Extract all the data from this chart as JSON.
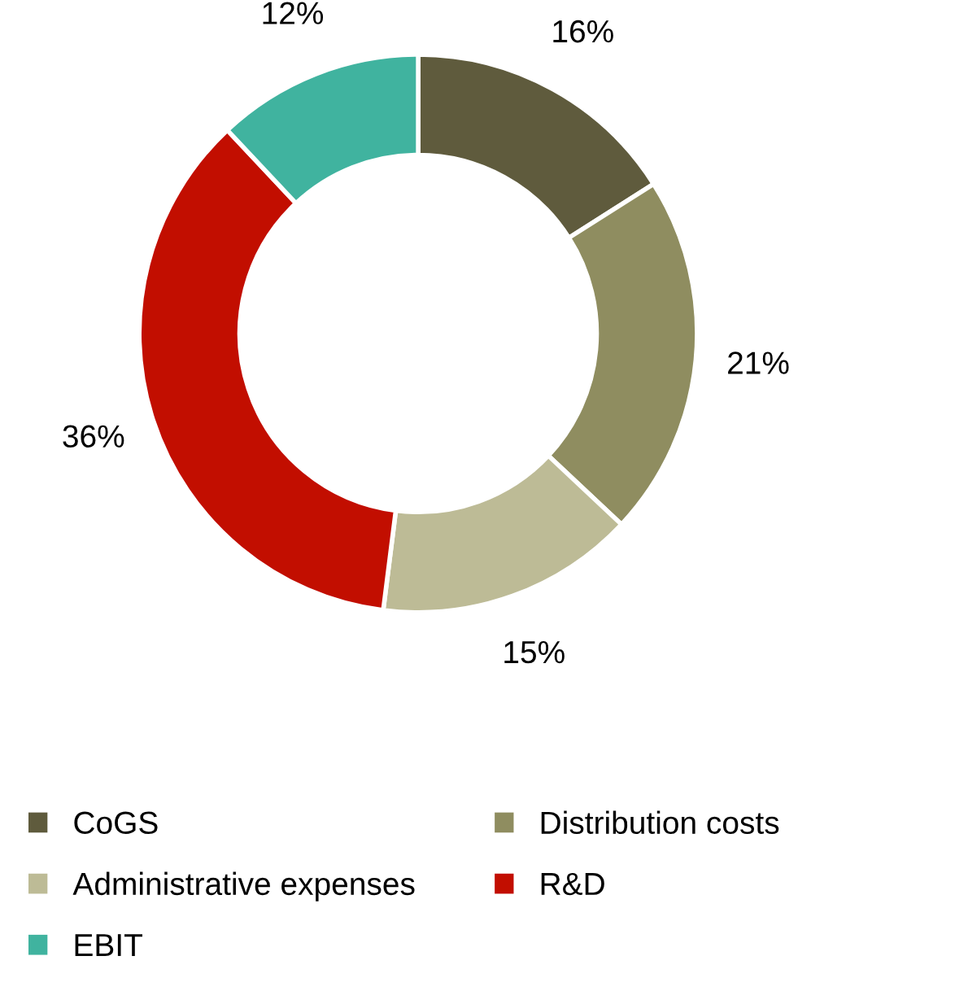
{
  "chart_data": {
    "type": "donut",
    "categories": [
      "CoGS",
      "Distribution costs",
      "Administrative expenses",
      "R&D",
      "EBIT"
    ],
    "values": [
      16,
      21,
      15,
      36,
      12
    ],
    "colors": [
      "#5f5b3d",
      "#8f8d60",
      "#bdbb96",
      "#c20e00",
      "#40b39f"
    ],
    "value_labels": [
      "16%",
      "21%",
      "15%",
      "36%",
      "12%"
    ],
    "legend": "bottom"
  }
}
